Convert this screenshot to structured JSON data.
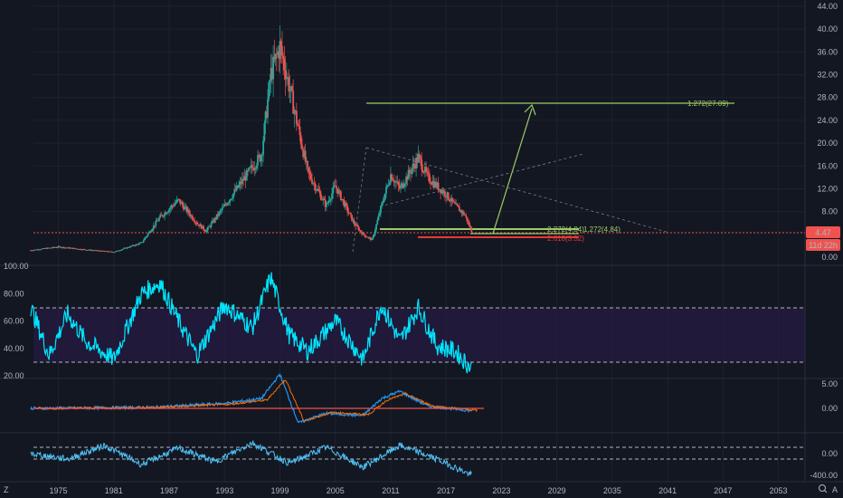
{
  "chart_data": [
    {
      "panel": "price",
      "type": "candlestick",
      "y_ticks": [
        "44.00",
        "40.00",
        "36.00",
        "32.00",
        "28.00",
        "24.00",
        "20.00",
        "16.00",
        "12.00",
        "8.00",
        "4.47",
        "0.00"
      ],
      "last_price": "4.47",
      "countdown": "11d 22h",
      "x_labels": [
        "1975",
        "1981",
        "1987",
        "1993",
        "1999",
        "2005",
        "2011",
        "2017",
        "2023",
        "2029",
        "2035",
        "2041",
        "2047",
        "2053"
      ],
      "annotations": {
        "target_label": "1.272(27.09)",
        "fib_upper_label": "1.272(4.84)",
        "fib_left_label": "2.272(4.84)",
        "fib_lower_label": "2.618(3.52)"
      },
      "series": [
        {
          "year": 1972,
          "value": 1.2
        },
        {
          "year": 1975,
          "value": 1.8
        },
        {
          "year": 1978,
          "value": 1.3
        },
        {
          "year": 1981,
          "value": 0.9
        },
        {
          "year": 1984,
          "value": 2.5
        },
        {
          "year": 1986,
          "value": 7.0
        },
        {
          "year": 1988,
          "value": 10.0
        },
        {
          "year": 1990,
          "value": 6.0
        },
        {
          "year": 1991,
          "value": 4.6
        },
        {
          "year": 1993,
          "value": 9.0
        },
        {
          "year": 1995,
          "value": 13.5
        },
        {
          "year": 1997,
          "value": 18.0
        },
        {
          "year": 1998,
          "value": 32.0
        },
        {
          "year": 1999,
          "value": 37.0
        },
        {
          "year": 2000,
          "value": 30.0
        },
        {
          "year": 2002,
          "value": 15.0
        },
        {
          "year": 2004,
          "value": 9.0
        },
        {
          "year": 2005,
          "value": 12.5
        },
        {
          "year": 2007,
          "value": 6.0
        },
        {
          "year": 2008,
          "value": 4.0
        },
        {
          "year": 2009,
          "value": 3.0
        },
        {
          "year": 2010,
          "value": 9.0
        },
        {
          "year": 2011,
          "value": 14.5
        },
        {
          "year": 2012,
          "value": 12.0
        },
        {
          "year": 2014,
          "value": 17.5
        },
        {
          "year": 2015,
          "value": 14.0
        },
        {
          "year": 2017,
          "value": 11.0
        },
        {
          "year": 2018,
          "value": 9.0
        },
        {
          "year": 2019,
          "value": 7.5
        },
        {
          "year": 2019.8,
          "value": 4.47
        }
      ]
    },
    {
      "panel": "rsi",
      "type": "line",
      "y_ticks": [
        "100.00",
        "80.00",
        "60.00",
        "40.00",
        "20.00"
      ],
      "band": [
        30,
        70
      ],
      "series": [
        {
          "year": 1972,
          "value": 70
        },
        {
          "year": 1974,
          "value": 35
        },
        {
          "year": 1976,
          "value": 65
        },
        {
          "year": 1978,
          "value": 45
        },
        {
          "year": 1981,
          "value": 32
        },
        {
          "year": 1984,
          "value": 80
        },
        {
          "year": 1986,
          "value": 88
        },
        {
          "year": 1988,
          "value": 60
        },
        {
          "year": 1990,
          "value": 35
        },
        {
          "year": 1993,
          "value": 72
        },
        {
          "year": 1996,
          "value": 55
        },
        {
          "year": 1998,
          "value": 92
        },
        {
          "year": 2000,
          "value": 50
        },
        {
          "year": 2002,
          "value": 38
        },
        {
          "year": 2005,
          "value": 60
        },
        {
          "year": 2008,
          "value": 32
        },
        {
          "year": 2010,
          "value": 72
        },
        {
          "year": 2012,
          "value": 45
        },
        {
          "year": 2014,
          "value": 70
        },
        {
          "year": 2016,
          "value": 42
        },
        {
          "year": 2018,
          "value": 38
        },
        {
          "year": 2019.8,
          "value": 25
        }
      ]
    },
    {
      "panel": "macd",
      "type": "line",
      "y_ticks": [
        "5.00",
        "0.00"
      ],
      "series": [
        {
          "year": 1972,
          "value": 0
        },
        {
          "year": 1985,
          "value": 0.2
        },
        {
          "year": 1993,
          "value": 1.0
        },
        {
          "year": 1997,
          "value": 2.0
        },
        {
          "year": 1999,
          "value": 7.0
        },
        {
          "year": 2001,
          "value": -3.0
        },
        {
          "year": 2004,
          "value": -1.0
        },
        {
          "year": 2008,
          "value": -1.5
        },
        {
          "year": 2010,
          "value": 2.0
        },
        {
          "year": 2012,
          "value": 3.5
        },
        {
          "year": 2015,
          "value": 0.5
        },
        {
          "year": 2019.8,
          "value": -0.5
        }
      ]
    },
    {
      "panel": "oscillator",
      "type": "line",
      "y_ticks": [
        "0.00",
        "-400.00"
      ],
      "series": [
        {
          "year": 1972,
          "value": 0
        },
        {
          "year": 1976,
          "value": -100
        },
        {
          "year": 1980,
          "value": 150
        },
        {
          "year": 1984,
          "value": -200
        },
        {
          "year": 1988,
          "value": 100
        },
        {
          "year": 1992,
          "value": -150
        },
        {
          "year": 1996,
          "value": 200
        },
        {
          "year": 2000,
          "value": -180
        },
        {
          "year": 2004,
          "value": 120
        },
        {
          "year": 2008,
          "value": -250
        },
        {
          "year": 2012,
          "value": 150
        },
        {
          "year": 2016,
          "value": -100
        },
        {
          "year": 2019.8,
          "value": -400
        }
      ]
    }
  ],
  "ui": {
    "left_marker": "Z",
    "right_marker": "A",
    "search_icon": "magnifier-icon"
  },
  "colors": {
    "background": "#131722",
    "up": "#26a69a",
    "down": "#ef5350",
    "rsi": "#00e5ff",
    "rsi_band": "#2a1a4a",
    "fib": "#9ccc65",
    "red_line": "#e53935",
    "macd_line": "#2196f3",
    "signal_line": "#ff6d00"
  }
}
